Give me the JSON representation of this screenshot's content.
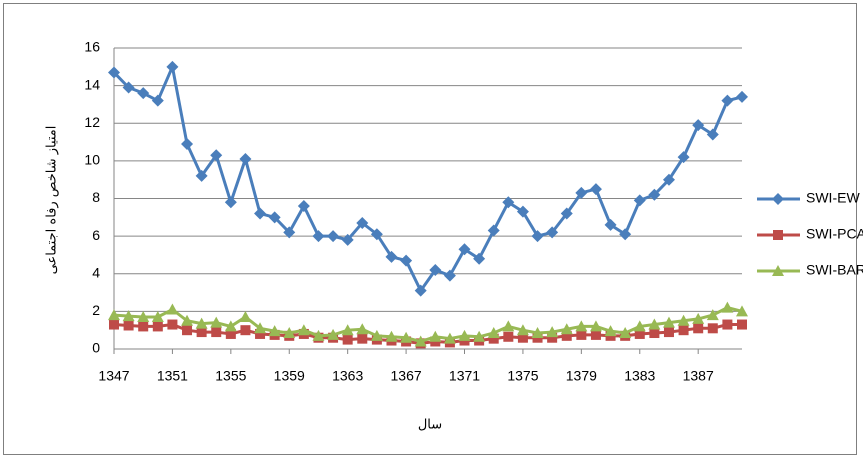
{
  "chart_data": {
    "type": "line",
    "y_label": "امتیاز شاخص رفاه اجتماعی",
    "x_label": "سال",
    "x": [
      1347,
      1348,
      1349,
      1350,
      1351,
      1352,
      1353,
      1354,
      1355,
      1356,
      1357,
      1358,
      1359,
      1360,
      1361,
      1362,
      1363,
      1364,
      1365,
      1366,
      1367,
      1368,
      1369,
      1370,
      1371,
      1372,
      1373,
      1374,
      1375,
      1376,
      1377,
      1378,
      1379,
      1380,
      1381,
      1382,
      1383,
      1384,
      1385,
      1386,
      1387,
      1388,
      1389,
      1390
    ],
    "series": [
      {
        "name": "SWI-EW",
        "color": "#4a7ebb",
        "marker": "diamond",
        "values": [
          14.7,
          13.9,
          13.6,
          13.2,
          15.0,
          10.9,
          9.2,
          10.3,
          7.8,
          10.1,
          7.2,
          7.0,
          6.2,
          7.6,
          6.0,
          6.0,
          5.8,
          6.7,
          6.1,
          4.9,
          4.7,
          3.1,
          4.2,
          3.9,
          5.3,
          4.8,
          6.3,
          7.8,
          7.3,
          6.0,
          6.2,
          7.2,
          8.3,
          8.5,
          6.6,
          6.1,
          7.9,
          8.2,
          9.0,
          10.2,
          11.9,
          11.4,
          13.2,
          13.4
        ]
      },
      {
        "name": "SWI-PCA",
        "color": "#be4b48",
        "marker": "square",
        "values": [
          1.3,
          1.25,
          1.2,
          1.2,
          1.3,
          1.0,
          0.9,
          0.9,
          0.8,
          1.0,
          0.8,
          0.75,
          0.7,
          0.8,
          0.6,
          0.6,
          0.5,
          0.55,
          0.5,
          0.45,
          0.4,
          0.3,
          0.4,
          0.35,
          0.45,
          0.45,
          0.55,
          0.65,
          0.6,
          0.6,
          0.6,
          0.7,
          0.75,
          0.75,
          0.7,
          0.7,
          0.8,
          0.85,
          0.9,
          1.0,
          1.1,
          1.1,
          1.3,
          1.3
        ]
      },
      {
        "name": "SWI-BAR",
        "color": "#98b954",
        "marker": "triangle",
        "values": [
          1.8,
          1.75,
          1.7,
          1.7,
          2.1,
          1.5,
          1.35,
          1.4,
          1.2,
          1.7,
          1.1,
          0.95,
          0.85,
          1.0,
          0.7,
          0.75,
          1.0,
          1.05,
          0.7,
          0.65,
          0.6,
          0.4,
          0.65,
          0.55,
          0.7,
          0.65,
          0.85,
          1.2,
          1.0,
          0.85,
          0.9,
          1.05,
          1.2,
          1.2,
          0.95,
          0.85,
          1.2,
          1.3,
          1.4,
          1.5,
          1.6,
          1.8,
          2.2,
          2.0
        ]
      }
    ],
    "xlim": [
      1347,
      1390
    ],
    "xticks": [
      1347,
      1351,
      1355,
      1359,
      1363,
      1367,
      1371,
      1375,
      1379,
      1383,
      1387
    ],
    "ylim": [
      0,
      16
    ],
    "yticks": [
      0,
      2,
      4,
      6,
      8,
      10,
      12,
      14,
      16
    ],
    "grid": true,
    "legend": "right"
  }
}
